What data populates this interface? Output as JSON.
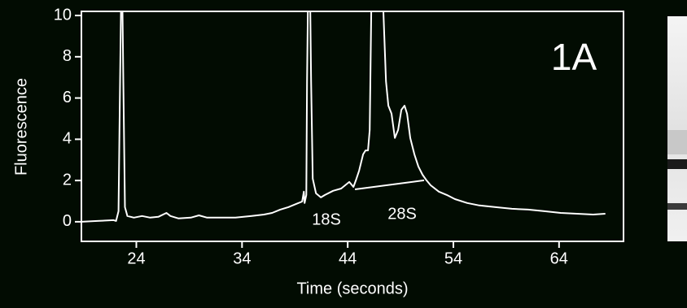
{
  "chart_data": {
    "type": "line",
    "xlabel": "Time (seconds)",
    "ylabel": "Fluorescence",
    "annotations": [
      "1A",
      "18S",
      "28S"
    ],
    "color": "#ffffff",
    "xlim": [
      18.8,
      70.1
    ],
    "ylim": [
      -0.95,
      10.2
    ],
    "xticks": [
      24,
      34,
      44,
      54,
      64
    ],
    "yticks": [
      0,
      2,
      4,
      6,
      8,
      10
    ],
    "x": [
      18.77,
      20.31,
      21.85,
      22.08,
      22.31,
      22.46,
      22.54,
      22.69,
      22.77,
      22.92,
      23.15,
      23.77,
      24.54,
      25.31,
      26.08,
      26.85,
      27.23,
      28.0,
      29.15,
      29.92,
      30.69,
      31.85,
      33.38,
      34.92,
      36.08,
      36.85,
      37.62,
      38.38,
      39.15,
      39.69,
      39.85,
      39.92,
      40.08,
      40.15,
      40.23,
      40.46,
      40.54,
      40.69,
      41.0,
      41.46,
      41.85,
      42.62,
      43.38,
      44.15,
      44.54,
      44.77,
      45.08,
      45.46,
      45.69,
      45.92,
      46.08,
      46.23,
      47.38,
      47.62,
      47.85,
      48.15,
      48.46,
      48.77,
      49.08,
      49.38,
      49.62,
      49.92,
      50.31,
      50.69,
      51.08,
      51.46,
      51.85,
      52.62,
      53.38,
      54.15,
      55.31,
      56.46,
      58.0,
      59.54,
      61.08,
      62.62,
      64.15,
      65.69,
      67.23,
      68.38
    ],
    "values": [
      0,
      0.04,
      0.08,
      0.04,
      0.51,
      6.81,
      10.2,
      10.2,
      6.81,
      0.71,
      0.28,
      0.2,
      0.28,
      0.2,
      0.24,
      0.43,
      0.28,
      0.16,
      0.2,
      0.31,
      0.2,
      0.2,
      0.2,
      0.28,
      0.35,
      0.43,
      0.59,
      0.71,
      0.87,
      0.98,
      1.46,
      0.91,
      1.3,
      6.81,
      10.2,
      10.2,
      6.81,
      2.09,
      1.38,
      1.18,
      1.3,
      1.5,
      1.61,
      1.93,
      1.69,
      2.01,
      2.48,
      3.27,
      3.46,
      3.46,
      4.45,
      10.2,
      10.2,
      6.81,
      5.63,
      5.24,
      4.06,
      4.45,
      5.43,
      5.63,
      5.24,
      4.06,
      3.27,
      2.68,
      2.28,
      2.01,
      1.77,
      1.46,
      1.3,
      1.1,
      0.91,
      0.79,
      0.71,
      0.63,
      0.59,
      0.51,
      0.43,
      0.39,
      0.35,
      0.39
    ],
    "baseline_x": [
      44.69,
      51.23
    ],
    "baseline_values": [
      1.57,
      2.01
    ]
  }
}
